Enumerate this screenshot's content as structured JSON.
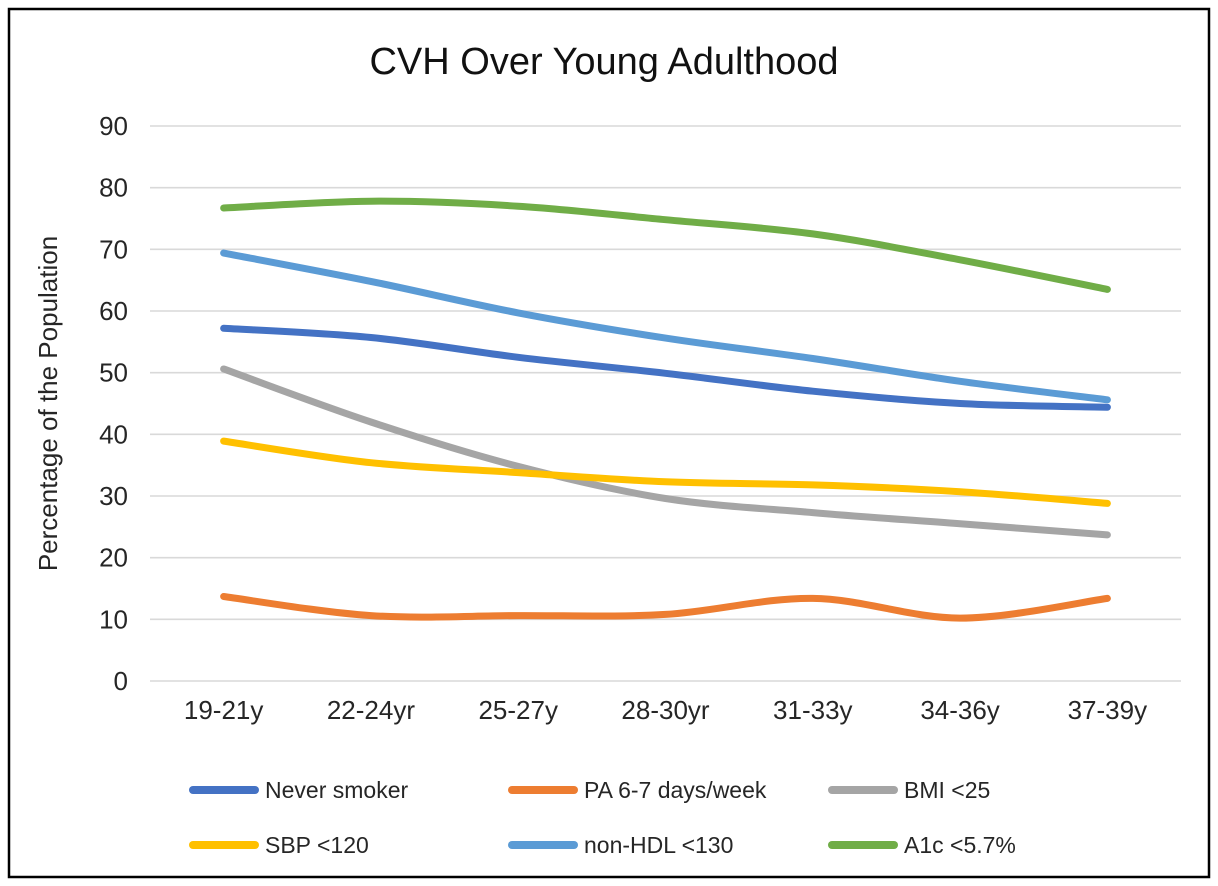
{
  "chart_data": {
    "type": "line",
    "title": "CVH Over Young Adulthood",
    "xlabel": "",
    "ylabel": "Percentage of the Population",
    "categories": [
      "19-21y",
      "22-24yr",
      "25-27y",
      "28-30yr",
      "31-33y",
      "34-36y",
      "37-39y"
    ],
    "y_ticks": [
      0,
      10,
      20,
      30,
      40,
      50,
      60,
      70,
      80,
      90
    ],
    "ylim": [
      0,
      90
    ],
    "grid": true,
    "line_style": "smooth",
    "legend_position": "bottom",
    "legend_rows": [
      [
        0,
        1,
        2
      ],
      [
        3,
        4,
        5
      ]
    ],
    "series": [
      {
        "name": "Never smoker",
        "color": "#4472C4",
        "values": [
          57.2,
          55.7,
          52.5,
          49.9,
          47.0,
          45.0,
          44.4
        ]
      },
      {
        "name": "PA 6-7 days/week",
        "color": "#ED7D31",
        "values": [
          13.7,
          10.6,
          10.6,
          10.8,
          13.4,
          10.2,
          13.4
        ]
      },
      {
        "name": "BMI <25",
        "color": "#A5A5A5",
        "values": [
          50.6,
          42.0,
          34.8,
          29.6,
          27.3,
          25.5,
          23.7
        ]
      },
      {
        "name": "SBP <120",
        "color": "#FFC000",
        "values": [
          38.9,
          35.4,
          33.8,
          32.3,
          31.8,
          30.7,
          28.8
        ]
      },
      {
        "name": "non-HDL <130",
        "color": "#5B9BD5",
        "values": [
          69.4,
          64.8,
          59.7,
          55.6,
          52.3,
          48.6,
          45.6
        ]
      },
      {
        "name": "A1c <5.7%",
        "color": "#70AD47",
        "values": [
          76.7,
          77.8,
          77.0,
          74.8,
          72.5,
          68.3,
          63.5
        ]
      }
    ],
    "colors": {
      "border": "#000000",
      "gridline": "#D9D9D9",
      "text": "#262626",
      "background": "#FFFFFF"
    }
  }
}
